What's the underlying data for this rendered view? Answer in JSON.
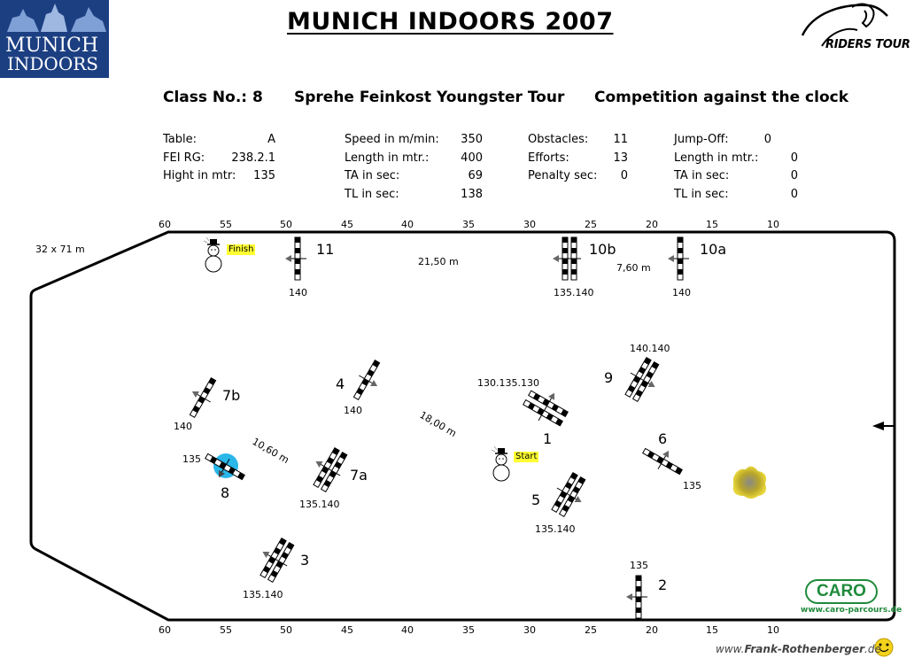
{
  "logo": {
    "line1": "MUNICH",
    "line2": "INDOORS"
  },
  "title": "MUNICH  INDOORS  2007",
  "brand": "RIDERS TOUR",
  "header": {
    "class_no": "Class No.: 8",
    "class_name": "Sprehe Feinkost Youngster Tour",
    "competition": "Competition against the clock"
  },
  "info": {
    "col1": [
      {
        "label": "Table:",
        "value": "A"
      },
      {
        "label": "FEI RG:",
        "value": "238.2.1"
      },
      {
        "label": "Hight in mtr:",
        "value": "135"
      }
    ],
    "col2": [
      {
        "label": "Speed in m/min:",
        "value": "350"
      },
      {
        "label": "Length in mtr.:",
        "value": "400"
      },
      {
        "label": "TA in sec:",
        "value": "69"
      },
      {
        "label": "TL in sec:",
        "value": "138"
      }
    ],
    "col3": [
      {
        "label": "Obstacles:",
        "value": "11"
      },
      {
        "label": "Efforts:",
        "value": "13"
      },
      {
        "label": "Penalty sec:",
        "value": "0"
      }
    ],
    "col4": [
      {
        "label": "Jump-Off:",
        "value": "0"
      },
      {
        "label": "Length in mtr.:",
        "value": "0"
      },
      {
        "label": "TA in sec:",
        "value": "0"
      },
      {
        "label": "TL in sec:",
        "value": "0"
      }
    ]
  },
  "ruler": [
    "60",
    "55",
    "50",
    "45",
    "40",
    "35",
    "30",
    "25",
    "20",
    "15",
    "10"
  ],
  "arena_size": "32 x 71 m",
  "obstacles": {
    "o1": {
      "num": "1",
      "height": "130.135.130"
    },
    "o2": {
      "num": "2",
      "height": "135"
    },
    "o3": {
      "num": "3",
      "height": "135.140"
    },
    "o4": {
      "num": "4",
      "height": "140"
    },
    "o5": {
      "num": "5",
      "height": "135.140"
    },
    "o6": {
      "num": "6",
      "height": "135"
    },
    "o7a": {
      "num": "7a",
      "height": "135.140"
    },
    "o7b": {
      "num": "7b",
      "height": "140"
    },
    "o8": {
      "num": "8",
      "height": "135"
    },
    "o9": {
      "num": "9",
      "height": "140.140"
    },
    "o10a": {
      "num": "10a",
      "height": "140"
    },
    "o10b": {
      "num": "10b",
      "height": "135.140"
    },
    "o11": {
      "num": "11",
      "height": "140"
    }
  },
  "distances": {
    "d1": "21,50 m",
    "d2": "7,60 m",
    "d3": "10,60 m",
    "d4": "18,00 m"
  },
  "start_label": "Start",
  "finish_label": "Finish",
  "caro": {
    "logo": "CARO",
    "url": "www.caro-parcours.de"
  },
  "credit": {
    "prefix": "www.",
    "name": "Frank-Rothenberger",
    "suffix": ".de"
  },
  "colors": {
    "logo_blue": "#1c3f82",
    "caro_green": "#1f8a3b",
    "callout_yellow": "#ffff33",
    "water_blue": "#29b6e8"
  }
}
